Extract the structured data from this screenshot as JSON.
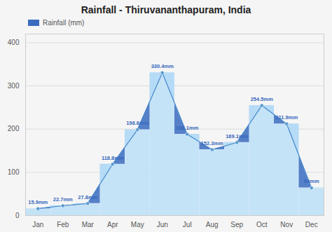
{
  "chart_data": {
    "type": "area",
    "title": "Rainfall - Thiruvananthapuram, India",
    "categories": [
      "Jan",
      "Feb",
      "Mar",
      "Apr",
      "May",
      "Jun",
      "Jul",
      "Aug",
      "Sep",
      "Oct",
      "Nov",
      "Dec"
    ],
    "series": [
      {
        "name": "Rainfall (mm)",
        "color": "#3a6bbf",
        "values": [
          15.9,
          22.7,
          27.8,
          118.8,
          198.6,
          330.4,
          188.1,
          152.3,
          169.1,
          254.5,
          211.9,
          64.0
        ],
        "value_labels": [
          "15.9mm",
          "22.7mm",
          "27.8mm",
          "118.8mm",
          "198.6mm",
          "330.4mm",
          "188.1mm",
          "152.3mm",
          "169.1mm",
          "254.5mm",
          "211.9mm",
          "64mm"
        ]
      }
    ],
    "ylim": [
      0,
      420
    ],
    "yticks": [
      0,
      100,
      200,
      300,
      400
    ],
    "grid": true,
    "legend": "upper left",
    "data_labels": true
  }
}
